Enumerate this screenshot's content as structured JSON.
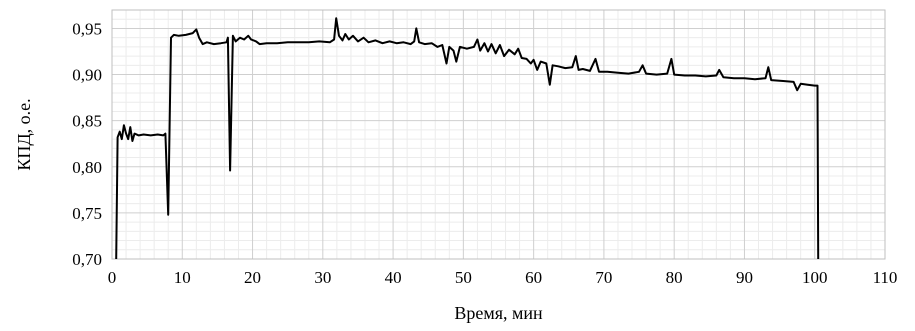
{
  "chart_data": {
    "type": "line",
    "title": "",
    "xlabel": "Время, мин",
    "ylabel": "КПД, о.е.",
    "xlim": [
      0,
      110
    ],
    "ylim": [
      0.7,
      0.97
    ],
    "grid": true,
    "legend": "none",
    "x_ticks": [
      0,
      10,
      20,
      30,
      40,
      50,
      60,
      70,
      80,
      90,
      100,
      110
    ],
    "x_tick_labels": [
      "0",
      "10",
      "20",
      "30",
      "40",
      "50",
      "60",
      "70",
      "80",
      "90",
      "100",
      "110"
    ],
    "y_ticks": [
      0.7,
      0.75,
      0.8,
      0.85,
      0.9,
      0.95
    ],
    "y_tick_labels": [
      "0,70",
      "0,75",
      "0,80",
      "0,85",
      "0,90",
      "0,95"
    ],
    "series": [
      {
        "color": "#000000",
        "points": [
          [
            0.6,
            0.7
          ],
          [
            0.8,
            0.832
          ],
          [
            1.1,
            0.838
          ],
          [
            1.4,
            0.83
          ],
          [
            1.7,
            0.845
          ],
          [
            2.0,
            0.836
          ],
          [
            2.3,
            0.83
          ],
          [
            2.6,
            0.843
          ],
          [
            2.9,
            0.828
          ],
          [
            3.2,
            0.836
          ],
          [
            3.8,
            0.834
          ],
          [
            4.5,
            0.835
          ],
          [
            5.5,
            0.834
          ],
          [
            6.5,
            0.835
          ],
          [
            7.3,
            0.834
          ],
          [
            7.6,
            0.836
          ],
          [
            8.0,
            0.748
          ],
          [
            8.4,
            0.94
          ],
          [
            8.8,
            0.943
          ],
          [
            9.5,
            0.942
          ],
          [
            10.5,
            0.943
          ],
          [
            11.5,
            0.945
          ],
          [
            12.0,
            0.949
          ],
          [
            12.4,
            0.94
          ],
          [
            12.9,
            0.933
          ],
          [
            13.5,
            0.935
          ],
          [
            14.5,
            0.933
          ],
          [
            15.5,
            0.934
          ],
          [
            16.3,
            0.935
          ],
          [
            16.5,
            0.94
          ],
          [
            16.8,
            0.796
          ],
          [
            17.2,
            0.942
          ],
          [
            17.6,
            0.936
          ],
          [
            18.2,
            0.94
          ],
          [
            18.8,
            0.938
          ],
          [
            19.4,
            0.942
          ],
          [
            19.8,
            0.938
          ],
          [
            20.5,
            0.936
          ],
          [
            21.0,
            0.933
          ],
          [
            22.0,
            0.934
          ],
          [
            23.5,
            0.934
          ],
          [
            25.0,
            0.935
          ],
          [
            26.5,
            0.935
          ],
          [
            28.0,
            0.935
          ],
          [
            29.5,
            0.936
          ],
          [
            31.0,
            0.935
          ],
          [
            31.6,
            0.938
          ],
          [
            31.9,
            0.961
          ],
          [
            32.3,
            0.942
          ],
          [
            32.8,
            0.937
          ],
          [
            33.2,
            0.944
          ],
          [
            33.7,
            0.938
          ],
          [
            34.3,
            0.942
          ],
          [
            35.0,
            0.936
          ],
          [
            35.8,
            0.94
          ],
          [
            36.5,
            0.935
          ],
          [
            37.5,
            0.937
          ],
          [
            38.5,
            0.934
          ],
          [
            39.5,
            0.936
          ],
          [
            40.5,
            0.934
          ],
          [
            41.5,
            0.935
          ],
          [
            42.5,
            0.933
          ],
          [
            43.0,
            0.936
          ],
          [
            43.3,
            0.95
          ],
          [
            43.7,
            0.935
          ],
          [
            44.5,
            0.933
          ],
          [
            45.5,
            0.934
          ],
          [
            46.3,
            0.93
          ],
          [
            47.0,
            0.932
          ],
          [
            47.6,
            0.912
          ],
          [
            48.0,
            0.93
          ],
          [
            48.6,
            0.926
          ],
          [
            49.0,
            0.914
          ],
          [
            49.5,
            0.93
          ],
          [
            50.5,
            0.928
          ],
          [
            51.5,
            0.93
          ],
          [
            52.0,
            0.938
          ],
          [
            52.4,
            0.926
          ],
          [
            53.0,
            0.934
          ],
          [
            53.5,
            0.925
          ],
          [
            54.0,
            0.933
          ],
          [
            54.6,
            0.923
          ],
          [
            55.2,
            0.932
          ],
          [
            55.8,
            0.92
          ],
          [
            56.5,
            0.927
          ],
          [
            57.3,
            0.922
          ],
          [
            57.8,
            0.928
          ],
          [
            58.3,
            0.918
          ],
          [
            59.0,
            0.917
          ],
          [
            59.6,
            0.912
          ],
          [
            60.0,
            0.916
          ],
          [
            60.5,
            0.905
          ],
          [
            61.0,
            0.914
          ],
          [
            61.8,
            0.912
          ],
          [
            62.3,
            0.889
          ],
          [
            62.7,
            0.91
          ],
          [
            63.5,
            0.909
          ],
          [
            64.5,
            0.907
          ],
          [
            65.5,
            0.908
          ],
          [
            66.0,
            0.92
          ],
          [
            66.4,
            0.905
          ],
          [
            67.0,
            0.906
          ],
          [
            68.0,
            0.904
          ],
          [
            68.8,
            0.917
          ],
          [
            69.3,
            0.903
          ],
          [
            70.5,
            0.903
          ],
          [
            72.0,
            0.902
          ],
          [
            73.5,
            0.901
          ],
          [
            75.0,
            0.903
          ],
          [
            75.5,
            0.91
          ],
          [
            76.0,
            0.901
          ],
          [
            77.5,
            0.9
          ],
          [
            79.0,
            0.901
          ],
          [
            79.6,
            0.917
          ],
          [
            80.0,
            0.9
          ],
          [
            81.5,
            0.899
          ],
          [
            83.0,
            0.899
          ],
          [
            84.5,
            0.898
          ],
          [
            86.0,
            0.899
          ],
          [
            86.4,
            0.905
          ],
          [
            87.0,
            0.897
          ],
          [
            88.5,
            0.896
          ],
          [
            90.0,
            0.896
          ],
          [
            91.5,
            0.895
          ],
          [
            93.0,
            0.896
          ],
          [
            93.4,
            0.908
          ],
          [
            93.8,
            0.894
          ],
          [
            95.5,
            0.893
          ],
          [
            97.0,
            0.892
          ],
          [
            97.5,
            0.883
          ],
          [
            98.0,
            0.89
          ],
          [
            99.0,
            0.889
          ],
          [
            100.0,
            0.888
          ],
          [
            100.4,
            0.888
          ],
          [
            100.5,
            0.7
          ]
        ]
      }
    ]
  }
}
